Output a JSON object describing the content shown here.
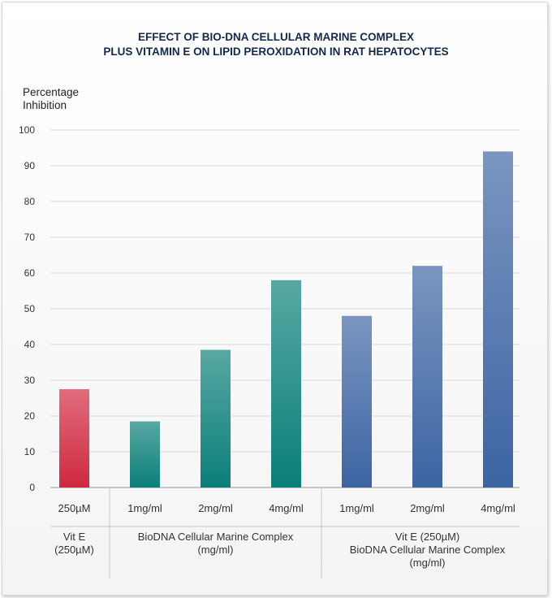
{
  "chart_data": {
    "type": "bar",
    "title": [
      "EFFECT OF BIO-DNA CELLULAR MARINE COMPLEX",
      "PLUS VITAMIN E ON LIPID PEROXIDATION IN RAT HEPATOCYTES"
    ],
    "ylabel": [
      "Percentage",
      "Inhibition"
    ],
    "ylim": [
      0,
      100
    ],
    "yticks": [
      0,
      10,
      20,
      30,
      40,
      50,
      60,
      70,
      80,
      90,
      100
    ],
    "grid": true,
    "categories": [
      "250µM",
      "1mg/ml",
      "2mg/ml",
      "4mg/ml",
      "1mg/ml",
      "2mg/ml",
      "4mg/ml"
    ],
    "values": [
      27.5,
      18.5,
      38.5,
      58,
      48,
      62,
      94
    ],
    "groups": [
      {
        "label": [
          "Vit E",
          "(250µM)"
        ],
        "categories": 1,
        "color": "#d0283f"
      },
      {
        "label": [
          "BioDNA Cellular Marine Complex",
          "(mg/ml)"
        ],
        "categories": 3,
        "color": "#0a7f78"
      },
      {
        "label": [
          "Vit E (250µM)",
          "BioDNA Cellular Marine Complex",
          "(mg/ml)"
        ],
        "categories": 3,
        "color": "#3c64a3"
      }
    ]
  }
}
